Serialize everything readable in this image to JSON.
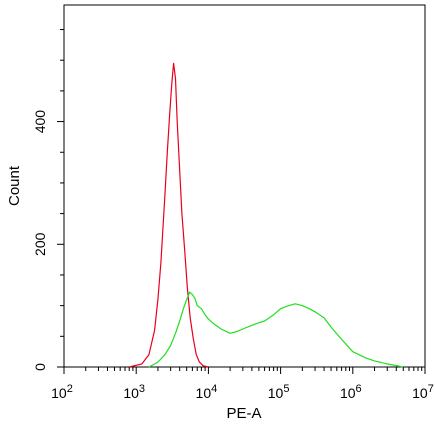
{
  "chart_data": {
    "type": "line",
    "title": "",
    "xlabel": "PE-A",
    "ylabel": "Count",
    "x_scale": "log",
    "xlim": [
      100,
      10000000
    ],
    "ylim": [
      0,
      590
    ],
    "x_ticks": [
      {
        "value": 100,
        "base": "10",
        "exp": "2"
      },
      {
        "value": 1000,
        "base": "10",
        "exp": "3"
      },
      {
        "value": 10000,
        "base": "10",
        "exp": "4"
      },
      {
        "value": 100000,
        "base": "10",
        "exp": "5"
      },
      {
        "value": 1000000,
        "base": "10",
        "exp": "6"
      },
      {
        "value": 10000000,
        "base": "10",
        "exp": "7"
      }
    ],
    "y_ticks": [
      "0",
      "200",
      "400"
    ],
    "grid": false,
    "legend": "none",
    "series": [
      {
        "color": "#e8001c",
        "x": [
          800,
          1200,
          1500,
          1800,
          2000,
          2200,
          2500,
          2700,
          2900,
          3100,
          3300,
          3500,
          3700,
          4000,
          4300,
          4700,
          5100,
          5600,
          6200,
          6800,
          7500,
          8500,
          10000
        ],
        "y": [
          0,
          5,
          20,
          60,
          110,
          170,
          280,
          350,
          410,
          460,
          495,
          470,
          400,
          320,
          250,
          190,
          130,
          80,
          45,
          20,
          8,
          2,
          0
        ]
      },
      {
        "color": "#22dd22",
        "x": [
          1500,
          2000,
          2500,
          3000,
          3500,
          4000,
          4500,
          5000,
          5500,
          6000,
          6500,
          7000,
          8000,
          9000,
          10000,
          12000,
          15000,
          20000,
          25000,
          30000,
          40000,
          50000,
          60000,
          80000,
          100000,
          130000,
          160000,
          200000,
          250000,
          300000,
          400000,
          500000,
          700000,
          1000000,
          1500000,
          2000000,
          3000000,
          5000000
        ],
        "y": [
          0,
          8,
          20,
          35,
          55,
          75,
          95,
          110,
          122,
          118,
          112,
          100,
          95,
          85,
          78,
          70,
          62,
          55,
          58,
          62,
          68,
          72,
          75,
          85,
          95,
          100,
          103,
          100,
          95,
          90,
          80,
          65,
          45,
          25,
          15,
          10,
          5,
          0
        ]
      }
    ]
  }
}
